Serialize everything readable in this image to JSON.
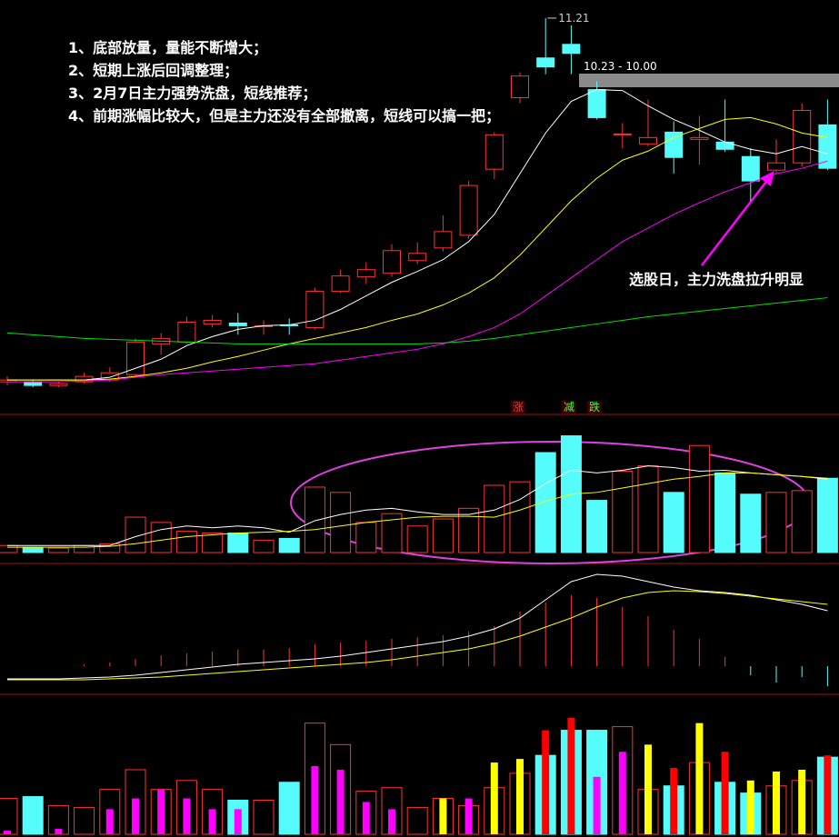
{
  "chart_data": [
    {
      "type": "candlestick",
      "up_color": "#ff3232",
      "down_color": "#54fcfc",
      "ylim": [
        2.47,
        11.57
      ],
      "open": [
        3.17,
        3.17,
        3.09,
        3.17,
        3.21,
        3.33,
        4.01,
        4.05,
        4.45,
        4.47,
        4.41,
        4.43,
        4.37,
        5.17,
        5.49,
        5.57,
        5.85,
        6.13,
        6.41,
        7.87,
        9.45,
        10.33,
        10.63,
        9.63,
        8.65,
        8.43,
        8.69,
        8.53,
        8.47,
        8.15,
        7.85,
        8.01,
        8.85
      ],
      "high": [
        3.29,
        3.21,
        3.17,
        3.37,
        3.49,
        4.13,
        4.25,
        4.61,
        4.65,
        4.69,
        4.53,
        4.57,
        5.25,
        5.65,
        5.81,
        6.21,
        6.25,
        6.85,
        7.61,
        8.69,
        10.01,
        11.21,
        11.05,
        9.81,
        8.89,
        9.41,
        8.93,
        9.05,
        9.41,
        8.33,
        8.53,
        9.33,
        9.41
      ],
      "low": [
        3.09,
        3.05,
        3.05,
        3.13,
        3.17,
        3.29,
        3.77,
        4.01,
        4.37,
        4.21,
        4.21,
        4.21,
        4.33,
        5.13,
        5.33,
        5.49,
        5.77,
        6.05,
        6.33,
        7.65,
        9.33,
        9.97,
        9.97,
        8.97,
        8.33,
        8.37,
        7.77,
        7.97,
        8.25,
        7.17,
        7.77,
        7.93,
        7.85
      ],
      "close": [
        3.21,
        3.09,
        3.13,
        3.29,
        3.37,
        4.05,
        4.13,
        4.49,
        4.53,
        4.41,
        4.41,
        4.41,
        5.17,
        5.51,
        5.65,
        6.07,
        6.01,
        6.49,
        7.51,
        8.63,
        9.93,
        10.13,
        10.43,
        9.01,
        8.65,
        8.57,
        8.13,
        8.57,
        8.31,
        7.61,
        8.01,
        9.17,
        7.89
      ],
      "series": [
        {
          "color": "#ffffff",
          "values": [
            3.21,
            3.21,
            3.21,
            3.21,
            3.27,
            3.47,
            3.67,
            3.97,
            4.17,
            4.33,
            4.41,
            4.43,
            4.53,
            4.77,
            5.07,
            5.37,
            5.61,
            5.87,
            6.27,
            6.87,
            7.77,
            8.67,
            9.37,
            9.63,
            9.61,
            9.27,
            8.97,
            8.73,
            8.47,
            8.31,
            8.21,
            8.37,
            8.21
          ]
        },
        {
          "color": "#ffff00",
          "values": [
            3.21,
            3.21,
            3.21,
            3.21,
            3.23,
            3.29,
            3.37,
            3.47,
            3.61,
            3.73,
            3.87,
            4.01,
            4.13,
            4.25,
            4.37,
            4.53,
            4.67,
            4.87,
            5.13,
            5.47,
            5.97,
            6.57,
            7.17,
            7.67,
            8.07,
            8.27,
            8.57,
            8.77,
            8.97,
            9.01,
            8.87,
            8.67,
            8.57
          ]
        },
        {
          "color": "#ff00ff",
          "values": [
            3.17,
            3.17,
            3.17,
            3.19,
            3.21,
            3.27,
            3.33,
            3.37,
            3.41,
            3.45,
            3.49,
            3.53,
            3.57,
            3.65,
            3.73,
            3.81,
            3.89,
            4.01,
            4.17,
            4.37,
            4.67,
            5.07,
            5.47,
            5.87,
            6.27,
            6.57,
            6.87,
            7.13,
            7.37,
            7.57,
            7.77,
            7.89,
            8.05
          ]
        },
        {
          "color": "#00e000",
          "values": [
            4.25,
            4.21,
            4.17,
            4.13,
            4.11,
            4.09,
            4.07,
            4.05,
            4.03,
            4.01,
            4.01,
            4.01,
            4.01,
            4.01,
            4.01,
            4.01,
            4.01,
            4.03,
            4.07,
            4.13,
            4.21,
            4.29,
            4.37,
            4.45,
            4.53,
            4.61,
            4.67,
            4.73,
            4.79,
            4.85,
            4.91,
            4.97,
            5.03
          ]
        }
      ],
      "notes": [
        "1、底部放量，量能不断增大；",
        "2、短期上涨后回调整理；",
        "3、2月7日主力强势洗盘，短线推荐；",
        "4、前期涨幅比较大，但是主力还没有全部撤离，短线可以搞一把；"
      ],
      "arrow_note": "选股日，主力洗盘拉升明显",
      "range_label": "10.23 - 10.00"
    },
    {
      "type": "volume",
      "ylim": [
        0,
        150
      ],
      "values": [
        8,
        6,
        5,
        8,
        10,
        40,
        34,
        24,
        22,
        22,
        14,
        16,
        74,
        68,
        34,
        44,
        30,
        38,
        50,
        76,
        80,
        113,
        132,
        59,
        92,
        98,
        68,
        121,
        90,
        66,
        68,
        70,
        84
      ],
      "series": [
        {
          "color": "#ffffff",
          "values": [
            8,
            8,
            8,
            8,
            8,
            18,
            26,
            30,
            28,
            30,
            28,
            23,
            36,
            43,
            48,
            50,
            46,
            43,
            43,
            48,
            60,
            78,
            93,
            90,
            93,
            98,
            96,
            92,
            93,
            90,
            88,
            86,
            83
          ]
        },
        {
          "color": "#ffff00",
          "values": [
            6,
            6,
            6,
            6,
            7,
            10,
            14,
            18,
            20,
            22,
            23,
            24,
            26,
            30,
            34,
            37,
            40,
            41,
            41,
            40,
            48,
            58,
            66,
            68,
            73,
            78,
            83,
            86,
            90,
            90,
            88,
            86,
            84
          ]
        }
      ],
      "signals": [
        "涨",
        "减",
        "跌"
      ]
    },
    {
      "type": "macd",
      "ylim": [
        -27,
        108
      ],
      "values": [
        0,
        0,
        0,
        2,
        4,
        8,
        12,
        14,
        16,
        18,
        18,
        20,
        24,
        26,
        28,
        30,
        32,
        34,
        38,
        44,
        60,
        70,
        78,
        75,
        65,
        55,
        40,
        30,
        10,
        -10,
        -18,
        -12,
        -22
      ],
      "series": [
        {
          "color": "#ffffff",
          "values": [
            -14,
            -14,
            -14,
            -13,
            -12,
            -10,
            -7,
            -4,
            -1,
            2,
            4,
            6,
            8,
            11,
            15,
            19,
            23,
            27,
            33,
            41,
            53,
            73,
            93,
            101,
            99,
            93,
            87,
            83,
            81,
            78,
            73,
            68,
            61
          ]
        },
        {
          "color": "#ffff00",
          "values": [
            -15,
            -15,
            -15,
            -15,
            -14,
            -13,
            -12,
            -10,
            -8,
            -6,
            -4,
            -2,
            0,
            2,
            4,
            7,
            11,
            15,
            19,
            25,
            33,
            43,
            53,
            65,
            75,
            81,
            83,
            82,
            80,
            77,
            74,
            71,
            68
          ]
        }
      ]
    },
    {
      "type": "dual-bar",
      "ylim": [
        0,
        150
      ],
      "values": [
        40,
        42,
        32,
        30,
        50,
        72,
        50,
        60,
        50,
        38,
        38,
        58,
        124,
        100,
        48,
        52,
        30,
        40,
        32,
        52,
        68,
        88,
        116,
        116,
        120,
        50,
        54,
        80,
        58,
        46,
        54,
        60,
        86
      ],
      "colors": [
        "#ff3232",
        "#54fcfc",
        "#ff3232",
        "#ff3232",
        "#ff3232",
        "#ff3232",
        "#ff3232",
        "#ff3232",
        "#ff3232",
        "#54fcfc",
        "#ff3232",
        "#54fcfc",
        "#ff3232",
        "#ff3232",
        "#ff3232",
        "#ff3232",
        "#ff3232",
        "#ff3232",
        "#ff3232",
        "#ff3232",
        "#ff3232",
        "#54fcfc",
        "#54fcfc",
        "#54fcfc",
        "#ff3232",
        "#ff3232",
        "#54fcfc",
        "#ff3232",
        "#54fcfc",
        "#54fcfc",
        "#ff3232",
        "#ff3232",
        "#54fcfc"
      ],
      "inner_values": [
        4,
        0,
        6,
        0,
        28,
        40,
        50,
        40,
        28,
        28,
        0,
        0,
        76,
        72,
        36,
        28,
        0,
        40,
        40,
        80,
        84,
        116,
        130,
        64,
        92,
        100,
        74,
        124,
        92,
        60,
        70,
        72,
        88
      ],
      "inner_colors": [
        "#ff00ff",
        "#ff00ff",
        "#ff00ff",
        "#ff00ff",
        "#ff00ff",
        "#ff00ff",
        "#ff00ff",
        "#ff00ff",
        "#ff00ff",
        "#ff00ff",
        "#ff00ff",
        "#ff00ff",
        "#ff00ff",
        "#ff00ff",
        "#ff00ff",
        "#ff00ff",
        "#ff00ff",
        "#ffff00",
        "#ff00ff",
        "#ffff00",
        "#ffff00",
        "#ff0000",
        "#ff0000",
        "#ff00ff",
        "#ff00ff",
        "#ffff00",
        "#ff0000",
        "#ffff00",
        "#ff0000",
        "#ffff00",
        "#ffff00",
        "#ffff00",
        "#ff0000"
      ]
    }
  ]
}
